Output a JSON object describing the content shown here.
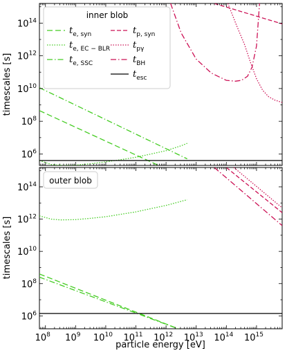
{
  "chart_data": [
    {
      "type": "line",
      "panel": "top",
      "legend_title": "inner blob",
      "legend_position": "top-left",
      "ylabel": "timescales [s]",
      "xlabel": "",
      "xscale": "log",
      "yscale": "log",
      "xlim_log10": [
        7.8,
        15.85
      ],
      "ylim_log10": [
        5.3,
        15.2
      ],
      "x_ticks": [
        {
          "b": "10",
          "e": "8",
          "v": 8
        },
        {
          "b": "10",
          "e": "9",
          "v": 9
        },
        {
          "b": "10",
          "e": "10",
          "v": 10
        },
        {
          "b": "10",
          "e": "11",
          "v": 11
        },
        {
          "b": "10",
          "e": "12",
          "v": 12
        },
        {
          "b": "10",
          "e": "13",
          "v": 13
        },
        {
          "b": "10",
          "e": "14",
          "v": 14
        },
        {
          "b": "10",
          "e": "15",
          "v": 15
        }
      ],
      "y_ticks": [
        {
          "b": "10",
          "e": "6",
          "v": 6
        },
        {
          "b": "10",
          "e": "8",
          "v": 8
        },
        {
          "b": "10",
          "e": "10",
          "v": 10
        },
        {
          "b": "10",
          "e": "12",
          "v": 12
        },
        {
          "b": "10",
          "e": "14",
          "v": 14
        }
      ],
      "series": [
        {
          "name": "t_e,syn",
          "label_main": "t",
          "label_sub": "e, syn",
          "color": "#44cc22",
          "dash": "8,4",
          "x_log10": [
            7.8,
            11.75
          ],
          "y_log10": [
            8.65,
            5.3
          ]
        },
        {
          "name": "t_e,EC-BLR",
          "label_main": "t",
          "label_sub": "e, EC − BLR",
          "color": "#44cc22",
          "dash": "1.5,2",
          "x_log10": [
            7.8,
            8.2,
            8.6,
            9.0,
            9.5,
            10.0,
            10.5,
            11.0,
            11.5,
            12.0,
            12.5,
            12.7
          ],
          "y_log10": [
            5.6,
            5.35,
            5.3,
            5.32,
            5.4,
            5.52,
            5.65,
            5.8,
            6.0,
            6.2,
            6.5,
            6.65
          ]
        },
        {
          "name": "t_e,SSC",
          "label_main": "t",
          "label_sub": "e, SSC",
          "color": "#44cc22",
          "dash": "8,3,1.5,3",
          "x_log10": [
            7.8,
            12.7
          ],
          "y_log10": [
            10.05,
            5.7
          ]
        },
        {
          "name": "t_p,syn",
          "label_main": "t",
          "label_sub": "p, syn",
          "color": "#cc1155",
          "dash": "6,3",
          "x_log10": [
            13.6,
            15.85
          ],
          "y_log10": [
            15.2,
            13.95
          ]
        },
        {
          "name": "t_pγ",
          "label_main": "t",
          "label_sub": "pγ",
          "color": "#cc1155",
          "dash": "1.5,2",
          "x_log10": [
            14.05,
            14.35,
            14.6,
            14.8,
            15.0,
            15.2,
            15.4,
            15.6,
            15.85
          ],
          "y_log10": [
            15.2,
            13.8,
            12.7,
            11.6,
            10.6,
            9.9,
            9.5,
            9.3,
            9.15
          ]
        },
        {
          "name": "t_BH",
          "label_main": "t",
          "label_sub": "BH",
          "color": "#cc1155",
          "dash": "8,3,1.5,3",
          "x_log10": [
            12.15,
            12.5,
            13.0,
            13.5,
            14.0,
            14.3,
            14.5,
            14.7,
            14.85,
            15.0,
            15.1
          ],
          "y_log10": [
            15.2,
            13.4,
            11.8,
            10.95,
            10.5,
            10.45,
            10.5,
            10.75,
            11.3,
            12.6,
            15.2
          ]
        },
        {
          "name": "t_esc",
          "label_main": "t",
          "label_sub": "esc",
          "color": "#000000",
          "dash": "",
          "x_log10": [
            7.8,
            15.85
          ],
          "y_log10": [
            5.6,
            5.6
          ]
        }
      ]
    },
    {
      "type": "line",
      "panel": "bottom",
      "legend_title": "outer blob",
      "legend_position": "top-left",
      "ylabel": "timescales [s]",
      "xlabel": "particle energy [eV]",
      "xscale": "log",
      "yscale": "log",
      "xlim_log10": [
        7.8,
        15.85
      ],
      "ylim_log10": [
        5.2,
        15.2
      ],
      "x_ticks": [
        {
          "b": "10",
          "e": "8",
          "v": 8
        },
        {
          "b": "10",
          "e": "9",
          "v": 9
        },
        {
          "b": "10",
          "e": "10",
          "v": 10
        },
        {
          "b": "10",
          "e": "11",
          "v": 11
        },
        {
          "b": "10",
          "e": "12",
          "v": 12
        },
        {
          "b": "10",
          "e": "13",
          "v": 13
        },
        {
          "b": "10",
          "e": "14",
          "v": 14
        },
        {
          "b": "10",
          "e": "15",
          "v": 15
        }
      ],
      "y_ticks": [
        {
          "b": "10",
          "e": "6",
          "v": 6
        },
        {
          "b": "10",
          "e": "8",
          "v": 8
        },
        {
          "b": "10",
          "e": "10",
          "v": 10
        },
        {
          "b": "10",
          "e": "12",
          "v": 12
        },
        {
          "b": "10",
          "e": "14",
          "v": 14
        }
      ],
      "series": [
        {
          "name": "t_e,syn",
          "color": "#44cc22",
          "dash": "8,4",
          "x_log10": [
            7.8,
            12.4
          ],
          "y_log10": [
            8.6,
            5.2
          ]
        },
        {
          "name": "t_e,EC-BLR",
          "color": "#44cc22",
          "dash": "1.5,2",
          "x_log10": [
            7.8,
            8.2,
            8.5,
            9.0,
            9.5,
            10.0,
            10.5,
            11.0,
            11.5,
            12.0,
            12.5,
            12.7
          ],
          "y_log10": [
            12.2,
            12.0,
            11.95,
            11.97,
            12.05,
            12.15,
            12.3,
            12.45,
            12.65,
            12.85,
            13.1,
            13.2
          ]
        },
        {
          "name": "t_e,SSC",
          "color": "#44cc22",
          "dash": "8,3,1.5,3",
          "x_log10": [
            7.8,
            12.4
          ],
          "y_log10": [
            8.4,
            5.2
          ]
        },
        {
          "name": "t_p,syn",
          "color": "#cc1155",
          "dash": "6,3",
          "x_log10": [
            14.0,
            15.85
          ],
          "y_log10": [
            15.2,
            12.4
          ]
        },
        {
          "name": "t_pγ",
          "color": "#cc1155",
          "dash": "1.5,2",
          "x_log10": [
            14.25,
            15.85
          ],
          "y_log10": [
            15.2,
            12.7
          ]
        },
        {
          "name": "t_BH",
          "color": "#cc1155",
          "dash": "8,3,1.5,3",
          "x_log10": [
            13.6,
            15.85
          ],
          "y_log10": [
            15.2,
            11.6
          ]
        },
        {
          "name": "t_esc",
          "color": "#000000",
          "dash": "",
          "x_log10": [
            7.8,
            15.85
          ],
          "y_log10": [
            6.15,
            6.15
          ]
        }
      ]
    }
  ]
}
